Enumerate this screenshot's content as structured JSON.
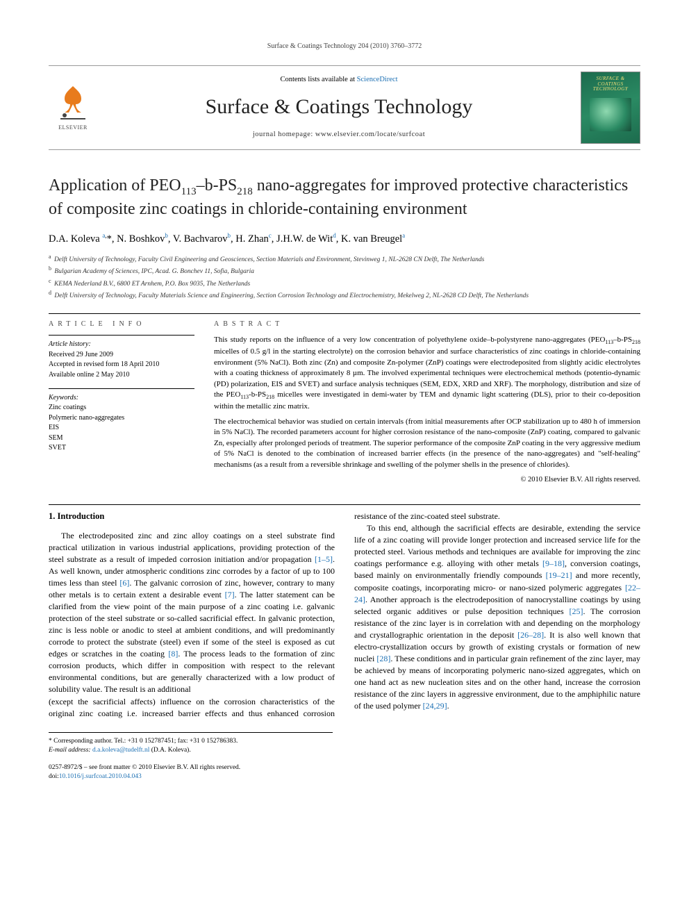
{
  "running_header": "Surface & Coatings Technology 204 (2010) 3760–3772",
  "masthead": {
    "publisher_name": "ELSEVIER",
    "contents_prefix": "Contents lists available at ",
    "contents_link": "ScienceDirect",
    "journal_name": "Surface & Coatings Technology",
    "homepage_line": "journal homepage: www.elsevier.com/locate/surfcoat",
    "cover_title": "SURFACE & COATINGS TECHNOLOGY"
  },
  "article": {
    "title_html": "Application of PEO<sub>113</sub>–b-PS<sub>218</sub> nano-aggregates for improved protective characteristics of composite zinc coatings in chloride-containing environment",
    "authors_html": "D.A. Koleva <sup><a href=\"#\">a</a>,</sup>*, N. Boshkov<sup><a href=\"#\">b</a></sup>, V. Bachvarov<sup><a href=\"#\">b</a></sup>, H. Zhan<sup><a href=\"#\">c</a></sup>, J.H.W. de Wit<sup><a href=\"#\">d</a></sup>, K. van Breugel<sup><a href=\"#\">a</a></sup>",
    "affiliations": [
      {
        "mark": "a",
        "text": "Delft University of Technology, Faculty Civil Engineering and Geosciences, Section Materials and Environment, Stevinweg 1, NL-2628 CN Delft, The Netherlands"
      },
      {
        "mark": "b",
        "text": "Bulgarian Academy of Sciences, IPC, Acad. G. Bonchev 11, Sofia, Bulgaria"
      },
      {
        "mark": "c",
        "text": "KEMA Nederland B.V., 6800 ET Arnhem, P.O. Box 9035, The Netherlands"
      },
      {
        "mark": "d",
        "text": "Delft University of Technology, Faculty Materials Science and Engineering, Section Corrosion Technology and Electrochemistry, Mekelweg 2, NL-2628 CD Delft, The Netherlands"
      }
    ]
  },
  "info": {
    "heading": "ARTICLE INFO",
    "history_label": "Article history:",
    "history": [
      "Received 29 June 2009",
      "Accepted in revised form 18 April 2010",
      "Available online 2 May 2010"
    ],
    "kw_label": "Keywords:",
    "keywords": [
      "Zinc coatings",
      "Polymeric nano-aggregates",
      "EIS",
      "SEM",
      "SVET"
    ]
  },
  "abstract": {
    "heading": "ABSTRACT",
    "paragraphs_html": [
      "This study reports on the influence of a very low concentration of polyethylene oxide–b-polystyrene nano-aggregates (PEO<sub>113</sub>–b-PS<sub>218</sub> micelles of 0.5 g/l in the starting electrolyte) on the corrosion behavior and surface characteristics of zinc coatings in chloride-containing environment (5% NaCl). Both zinc (Zn) and composite Zn-polymer (ZnP) coatings were electrodeposited from slightly acidic electrolytes with a coating thickness of approximately 8 µm. The involved experimental techniques were electrochemical methods (potentio-dynamic (PD) polarization, EIS and SVET) and surface analysis techniques (SEM, EDX, XRD and XRF). The morphology, distribution and size of the PEO<sub>113</sub>-b-PS<sub>218</sub> micelles were investigated in demi-water by TEM and dynamic light scattering (DLS), prior to their co-deposition within the metallic zinc matrix.",
      "The electrochemical behavior was studied on certain intervals (from initial measurements after OCP stabilization up to 480 h of immersion in 5% NaCl). The recorded parameters account for higher corrosion resistance of the nano-composite (ZnP) coating, compared to galvanic Zn, especially after prolonged periods of treatment. The superior performance of the composite ZnP coating in the very aggressive medium of 5% NaCl is denoted to the combination of increased barrier effects (in the presence of the nano-aggregates) and \"self-healing\" mechanisms (as a result from a reversible shrinkage and swelling of the polymer shells in the presence of chlorides)."
    ],
    "copyright": "© 2010 Elsevier B.V. All rights reserved."
  },
  "body": {
    "section_heading": "1. Introduction",
    "para1_html": "The electrodeposited zinc and zinc alloy coatings on a steel substrate find practical utilization in various industrial applications, providing protection of the steel substrate as a result of impeded corrosion initiation and/or propagation <a class=\"ref\" href=\"#\">[1–5]</a>. As well known, under atmospheric conditions zinc corrodes by a factor of up to 100 times less than steel <a class=\"ref\" href=\"#\">[6]</a>. The galvanic corrosion of zinc, however, contrary to many other metals is to certain extent a desirable event <a class=\"ref\" href=\"#\">[7]</a>. The latter statement can be clarified from the view point of the main purpose of a zinc coating i.e. galvanic protection of the steel substrate or so-called sacrificial effect. In galvanic protection, zinc is less noble or anodic to steel at ambient conditions, and will predominantly corrode to protect the substrate (steel) even if some of the steel is exposed as cut edges or scratches in the coating <a class=\"ref\" href=\"#\">[8]</a>. The process leads to the formation of zinc corrosion products, which differ in composition with respect to the relevant environmental conditions, but are generally characterized with a low product of solubility value. The result is an additional",
    "para2_html": "(except the sacrificial affects) influence on the corrosion characteristics of the original zinc coating i.e. increased barrier effects and thus enhanced corrosion resistance of the zinc-coated steel substrate.",
    "para3_html": "To this end, although the sacrificial effects are desirable, extending the service life of a zinc coating will provide longer protection and increased service life for the protected steel. Various methods and techniques are available for improving the zinc coatings performance e.g. alloying with other metals <a class=\"ref\" href=\"#\">[9–18]</a>, conversion coatings, based mainly on environmentally friendly compounds <a class=\"ref\" href=\"#\">[19–21]</a> and more recently, composite coatings, incorporating micro- or nano-sized polymeric aggregates <a class=\"ref\" href=\"#\">[22–24]</a>. Another approach is the electrodeposition of nanocrystalline coatings by using selected organic additives or pulse deposition techniques <a class=\"ref\" href=\"#\">[25]</a>. The corrosion resistance of the zinc layer is in correlation with and depending on the morphology and crystallographic orientation in the deposit <a class=\"ref\" href=\"#\">[26–28]</a>. It is also well known that electro-crystallization occurs by growth of existing crystals or formation of new nuclei <a class=\"ref\" href=\"#\">[28]</a>. These conditions and in particular grain refinement of the zinc layer, may be achieved by means of incorporating polymeric nano-sized aggregates, which on one hand act as new nucleation sites and on the other hand, increase the corrosion resistance of the zinc layers in aggressive environment, due to the amphiphilic nature of the used polymer <a class=\"ref\" href=\"#\">[24,29]</a>."
  },
  "footnote": {
    "corr": "* Corresponding author. Tel.: +31 0 152787451; fax: +31 0 152786383.",
    "email_label": "E-mail address:",
    "email": "d.a.koleva@tudelft.nl",
    "email_owner": "(D.A. Koleva)."
  },
  "footer": {
    "line1": "0257-8972/$ – see front matter © 2010 Elsevier B.V. All rights reserved.",
    "doi_label": "doi:",
    "doi": "10.1016/j.surfcoat.2010.04.043"
  },
  "colors": {
    "link": "#1b6fb3",
    "cover_bg": "#2a8a63",
    "cover_title": "#f7e07a",
    "tree_fill": "#e87b1c"
  }
}
